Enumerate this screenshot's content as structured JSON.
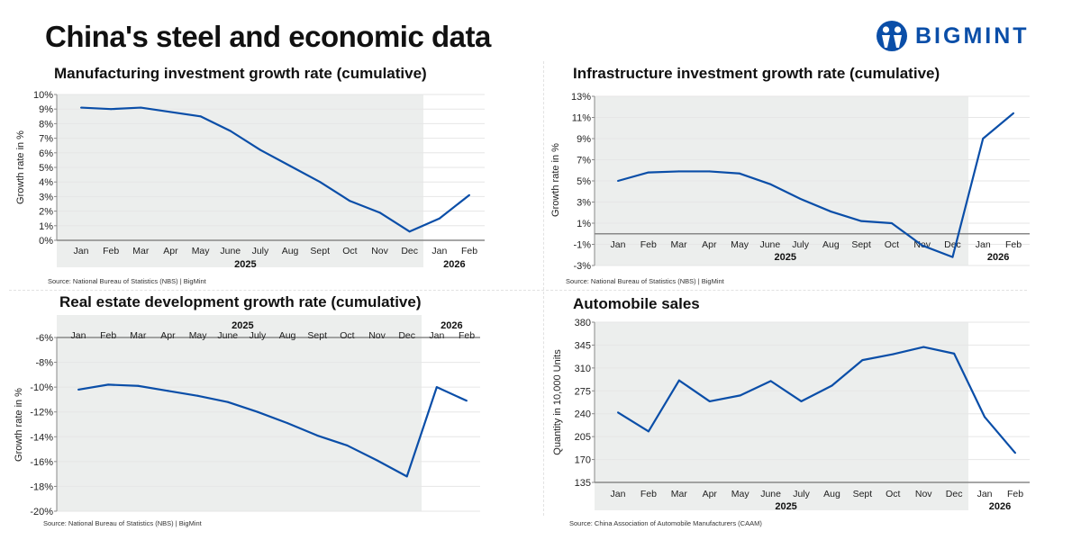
{
  "header": {
    "title": "China's steel and economic data",
    "logo_text": "BIGMINT"
  },
  "colors": {
    "line": "#0a4ea8",
    "shade": "#eceeed",
    "grid": "#e6e6e6",
    "axis": "#888888",
    "logo": "#0a4ea8"
  },
  "chart_data": [
    {
      "type": "line",
      "title": "Manufacturing investment growth rate (cumulative)",
      "ylabel": "Growth rate in %",
      "categories": [
        "Jan",
        "Feb",
        "Mar",
        "Apr",
        "May",
        "June",
        "July",
        "Aug",
        "Sept",
        "Oct",
        "Nov",
        "Dec",
        "Jan",
        "Feb"
      ],
      "years": [
        {
          "label": "2025",
          "months": 12
        },
        {
          "label": "2026",
          "months": 2
        }
      ],
      "values": [
        9.1,
        9.0,
        9.1,
        8.8,
        8.5,
        7.5,
        6.2,
        5.1,
        4.0,
        2.7,
        1.9,
        0.6,
        1.5,
        3.1
      ],
      "ylim": [
        0,
        10
      ],
      "yticks": [
        "0%",
        "1%",
        "2%",
        "3%",
        "4%",
        "5%",
        "6%",
        "7%",
        "8%",
        "9%",
        "10%"
      ],
      "grid": true,
      "source": "Source: National Bureau of Statistics (NBS) |  BigMint"
    },
    {
      "type": "line",
      "title": "Infrastructure investment growth rate (cumulative)",
      "ylabel": "Growth rate in %",
      "categories": [
        "Jan",
        "Feb",
        "Mar",
        "Apr",
        "May",
        "June",
        "July",
        "Aug",
        "Sept",
        "Oct",
        "Nov",
        "Dec",
        "Jan",
        "Feb"
      ],
      "years": [
        {
          "label": "2025",
          "months": 12
        },
        {
          "label": "2026",
          "months": 2
        }
      ],
      "values": [
        5.0,
        5.8,
        5.9,
        5.9,
        5.7,
        4.7,
        3.3,
        2.1,
        1.2,
        1.0,
        -1.1,
        -2.2,
        9.0,
        11.4
      ],
      "ylim": [
        -3,
        13
      ],
      "yticks": [
        "-3%",
        "-1%",
        "1%",
        "3%",
        "5%",
        "7%",
        "9%",
        "11%",
        "13%"
      ],
      "grid": true,
      "source": "Source: National Bureau of Statistics (NBS) |  BigMint"
    },
    {
      "type": "line",
      "title": "Real estate development growth rate (cumulative)",
      "ylabel": "Growth rate in %",
      "categories": [
        "Jan",
        "Feb",
        "Mar",
        "Apr",
        "May",
        "June",
        "July",
        "Aug",
        "Sept",
        "Oct",
        "Nov",
        "Dec",
        "Jan",
        "Feb"
      ],
      "years": [
        {
          "label": "2025",
          "months": 12
        },
        {
          "label": "2026",
          "months": 2
        }
      ],
      "values": [
        -10.2,
        -9.8,
        -9.9,
        -10.3,
        -10.7,
        -11.2,
        -12.0,
        -12.9,
        -13.9,
        -14.7,
        -15.9,
        -17.2,
        -10.0,
        -11.1
      ],
      "ylim": [
        -20,
        -6
      ],
      "yticks": [
        "-20%",
        "-18%",
        "-16%",
        "-14%",
        "-12%",
        "-10%",
        "-8%",
        "-6%"
      ],
      "grid": true,
      "source": "Source: National Bureau of Statistics (NBS) |  BigMint"
    },
    {
      "type": "line",
      "title": "Automobile sales",
      "ylabel": "Quantity in 10,000 Units",
      "categories": [
        "Jan",
        "Feb",
        "Mar",
        "Apr",
        "May",
        "June",
        "July",
        "Aug",
        "Sept",
        "Oct",
        "Nov",
        "Dec",
        "Jan",
        "Feb"
      ],
      "years": [
        {
          "label": "2025",
          "months": 12
        },
        {
          "label": "2026",
          "months": 2
        }
      ],
      "values": [
        242,
        213,
        291,
        259,
        268,
        290,
        259,
        283,
        322,
        331,
        342,
        332,
        235,
        180
      ],
      "ylim": [
        135,
        380
      ],
      "yticks": [
        "135",
        "170",
        "205",
        "240",
        "275",
        "310",
        "345",
        "380"
      ],
      "grid": true,
      "source": "Source: China Association of Automobile Manufacturers (CAAM)"
    }
  ]
}
